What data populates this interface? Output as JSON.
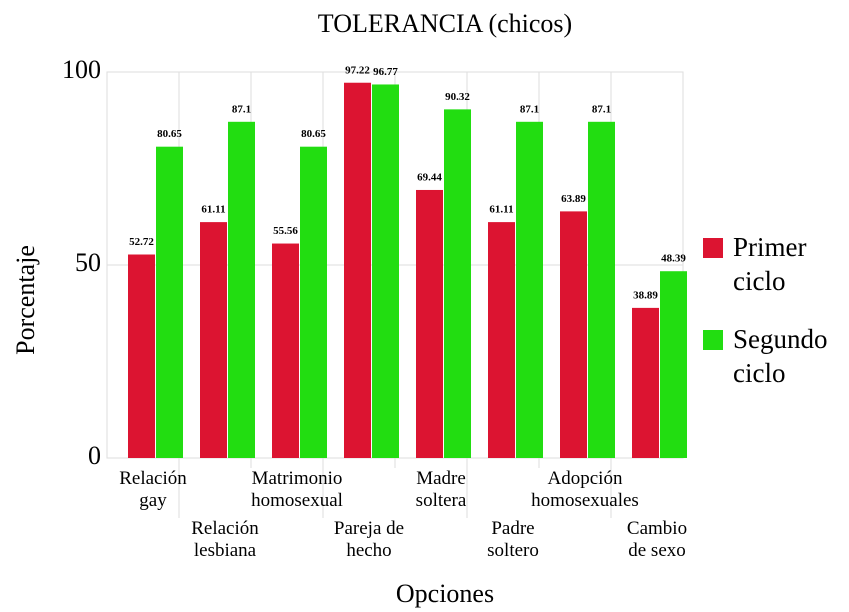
{
  "chart_data": {
    "type": "bar",
    "title": "TOLERANCIA (chicos)",
    "x_label": "Opciones",
    "y_label": "Porcentaje",
    "categories": [
      "Relación\ngay",
      "Relación\nlesbiana",
      "Matrimonio\nhomosexual",
      "Pareja de\nhecho",
      "Madre\nsoltera",
      "Padre\nsoltero",
      "Adopción\nhomosexuales",
      "Cambio\nde sexo"
    ],
    "series": [
      {
        "name": "Primer\nciclo",
        "color": "#dc1431",
        "values": [
          52.72,
          61.11,
          55.56,
          97.22,
          69.44,
          61.11,
          63.89,
          38.89
        ]
      },
      {
        "name": "Segundo\nciclo",
        "color": "#22dd11",
        "values": [
          80.65,
          87.1,
          80.65,
          96.77,
          90.32,
          87.1,
          87.1,
          48.39
        ]
      }
    ],
    "ylim": [
      0,
      100
    ],
    "yticks": [
      0,
      50,
      100
    ],
    "grid": true,
    "legend": "right"
  }
}
